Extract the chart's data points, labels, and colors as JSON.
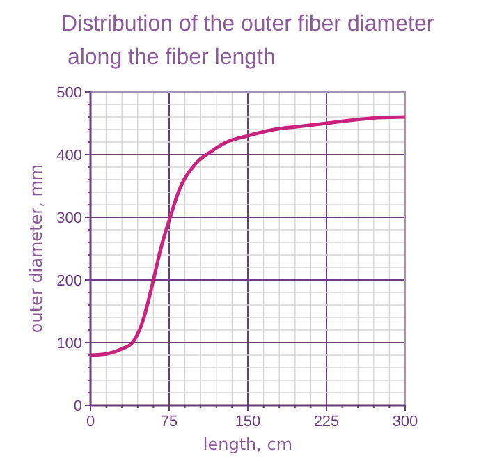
{
  "chart_data": {
    "type": "line",
    "title": "Distribution of the outer fiber diameter\n along the fiber length",
    "xlabel": "length, cm",
    "ylabel": "outer diameter, mm",
    "x": [
      0,
      15,
      30,
      40,
      50,
      60,
      67,
      75,
      85,
      100,
      115,
      130,
      150,
      175,
      200,
      225,
      250,
      275,
      300
    ],
    "series": [
      {
        "color": "#c8237f",
        "values": [
          80,
          82,
          90,
          100,
          135,
          200,
          250,
          295,
          345,
          385,
          405,
          420,
          430,
          440,
          445,
          450,
          455,
          459,
          460
        ]
      }
    ],
    "xlim": [
      0,
      300
    ],
    "ylim": [
      0,
      500
    ],
    "xticks": [
      0,
      {
        "value": 15,
        "label": null
      },
      {
        "value": 30,
        "label": null
      },
      {
        "value": 45,
        "label": null
      },
      {
        "value": 60,
        "label": null
      },
      75,
      {
        "value": 90,
        "label": null
      },
      {
        "value": 105,
        "label": null
      },
      {
        "value": 120,
        "label": null
      },
      {
        "value": 135,
        "label": null
      },
      150,
      {
        "value": 165,
        "label": null
      },
      {
        "value": 180,
        "label": null
      },
      {
        "value": 195,
        "label": null
      },
      {
        "value": 210,
        "label": null
      },
      225,
      {
        "value": 240,
        "label": null
      },
      {
        "value": 255,
        "label": null
      },
      {
        "value": 270,
        "label": null
      },
      {
        "value": 285,
        "label": null
      },
      300
    ],
    "yticks": [
      0,
      {
        "value": 20,
        "label": null
      },
      {
        "value": 40,
        "label": null
      },
      {
        "value": 60,
        "label": null
      },
      {
        "value": 80,
        "label": null
      },
      100,
      {
        "value": 120,
        "label": null
      },
      {
        "value": 140,
        "label": null
      },
      {
        "value": 160,
        "label": null
      },
      {
        "value": 180,
        "label": null
      },
      200,
      {
        "value": 220,
        "label": null
      },
      {
        "value": 240,
        "label": null
      },
      {
        "value": 260,
        "label": null
      },
      {
        "value": 280,
        "label": null
      },
      300,
      {
        "value": 320,
        "label": null
      },
      {
        "value": 340,
        "label": null
      },
      {
        "value": 360,
        "label": null
      },
      {
        "value": 380,
        "label": null
      },
      400,
      {
        "value": 420,
        "label": null
      },
      {
        "value": 440,
        "label": null
      },
      {
        "value": 460,
        "label": null
      },
      {
        "value": 480,
        "label": null
      },
      500
    ],
    "grid": true,
    "marker": "none",
    "line_style": "solid"
  }
}
